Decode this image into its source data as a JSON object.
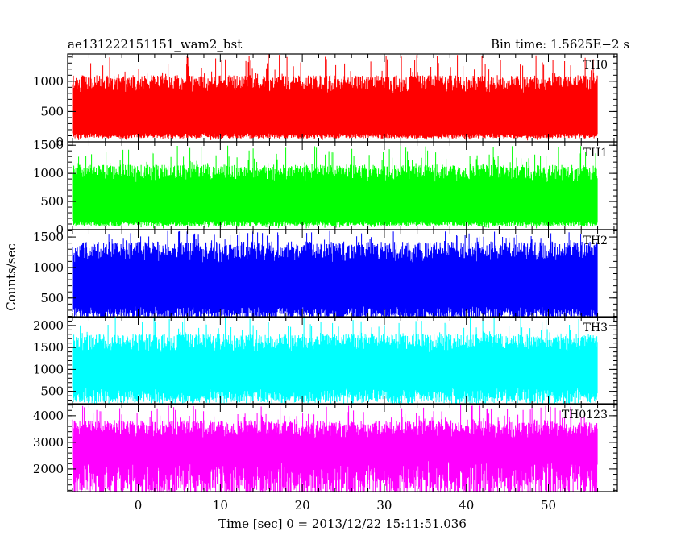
{
  "chart_data": {
    "type": "line",
    "title_left": "ae131222151151_wam2_bst",
    "title_right": "Bin time: 1.5625E−2 s",
    "xlabel": "Time [sec] 0 = 2013/12/22 15:11:51.036",
    "ylabel": "Counts/sec",
    "xlim": [
      -8.6,
      58.4
    ],
    "data_xrange": [
      -8,
      56
    ],
    "x_major_ticks": [
      0,
      10,
      20,
      30,
      40,
      50
    ],
    "x_tick_labels": [
      "0",
      "10",
      "20",
      "30",
      "40",
      "50"
    ],
    "grid": false,
    "legend": "none",
    "panels": [
      {
        "name": "TH0",
        "color": "#ff0000",
        "ylim": [
          0,
          1450
        ],
        "y_ticks": [
          0,
          500,
          1000
        ],
        "y_tick_labels": [
          "0",
          "500",
          "1000"
        ],
        "y_minor_step": 100,
        "base_low": 100,
        "base_high": 950,
        "spike_low": 20,
        "spike_high": 1450
      },
      {
        "name": "TH1",
        "color": "#00ff00",
        "ylim": [
          0,
          1560
        ],
        "y_ticks": [
          0,
          500,
          1000,
          1500
        ],
        "y_tick_labels": [
          "0",
          "500",
          "1000",
          "1500"
        ],
        "y_minor_step": 100,
        "base_low": 110,
        "base_high": 1000,
        "spike_low": 20,
        "spike_high": 1500
      },
      {
        "name": "TH2",
        "color": "#0000ff",
        "ylim": [
          180,
          1620
        ],
        "y_ticks": [
          500,
          1000,
          1500
        ],
        "y_tick_labels": [
          "500",
          "1000",
          "1500"
        ],
        "y_minor_step": 100,
        "base_low": 250,
        "base_high": 1250,
        "spike_low": 180,
        "spike_high": 1600
      },
      {
        "name": "TH3",
        "color": "#00ffff",
        "ylim": [
          200,
          2200
        ],
        "y_ticks": [
          500,
          1000,
          1500,
          2000
        ],
        "y_tick_labels": [
          "500",
          "1000",
          "1500",
          "2000"
        ],
        "y_minor_step": 100,
        "base_low": 400,
        "base_high": 1600,
        "spike_low": 250,
        "spike_high": 2200
      },
      {
        "name": "TH0123",
        "color": "#ff00ff",
        "ylim": [
          1150,
          4450
        ],
        "y_ticks": [
          2000,
          3000,
          4000
        ],
        "y_tick_labels": [
          "2000",
          "3000",
          "4000"
        ],
        "y_minor_step": 200,
        "base_low": 1600,
        "base_high": 3500,
        "spike_low": 1150,
        "spike_high": 4400
      }
    ]
  }
}
